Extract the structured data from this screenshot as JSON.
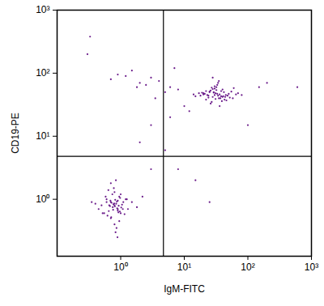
{
  "chart_data": {
    "type": "scatter",
    "x_label": "IgM-FITC",
    "y_label": "CD19-PE",
    "log": true,
    "color": "#6a1b8a",
    "marker": "dot",
    "xlim": [
      0.1,
      1000
    ],
    "ylim": [
      0.125,
      1000
    ],
    "xticks": [
      {
        "value": 1,
        "label": "10⁰"
      },
      {
        "value": 10,
        "label": "10¹"
      },
      {
        "value": 100,
        "label": "10²"
      },
      {
        "value": 1000,
        "label": "10³"
      }
    ],
    "yticks": [
      {
        "value": 1,
        "label": "10⁰"
      },
      {
        "value": 10,
        "label": "10¹"
      },
      {
        "value": 100,
        "label": "10²"
      },
      {
        "value": 1000,
        "label": "10³"
      }
    ],
    "gate_x": 4.7,
    "gate_y": 4.8,
    "x": [
      0.8,
      0.7,
      0.9,
      1.0,
      0.6,
      0.75,
      0.85,
      1.1,
      0.65,
      0.95,
      0.5,
      1.3,
      0.8,
      0.7,
      0.9,
      1.2,
      0.55,
      0.8,
      1.0,
      0.72,
      0.88,
      0.62,
      1.05,
      0.78,
      0.68,
      0.92,
      1.5,
      0.45,
      0.83,
      0.98,
      0.58,
      0.76,
      1.15,
      0.87,
      0.7,
      0.95,
      0.4,
      1.8,
      0.82,
      0.66,
      0.9,
      0.74,
      1.02,
      0.6,
      0.86,
      0.79,
      1.25,
      0.52,
      0.93,
      0.71,
      0.84,
      0.69,
      1.08,
      0.77,
      0.35,
      2.2,
      0.89,
      0.64,
      0.97,
      0.81,
      30,
      25,
      35,
      40,
      20,
      28,
      32,
      45,
      22,
      38,
      50,
      18,
      27,
      33,
      42,
      24,
      36,
      60,
      15,
      29,
      31,
      26,
      48,
      34,
      21,
      39,
      55,
      23,
      30,
      44,
      17,
      37,
      28,
      65,
      26,
      32,
      41,
      19,
      35,
      52,
      29,
      24,
      46,
      33,
      27,
      80,
      22,
      36,
      31,
      40,
      14,
      58,
      28,
      34,
      25,
      43,
      30,
      38,
      20,
      70,
      0.33,
      0.7,
      1.2,
      2,
      3,
      1.5,
      4,
      6,
      8,
      2.5,
      0.9,
      5,
      3.5,
      7,
      1.8,
      10,
      12,
      6,
      3,
      150,
      200,
      100,
      8,
      15,
      3,
      5,
      2,
      0.3,
      600,
      25
    ],
    "y": [
      0.8,
      0.9,
      0.7,
      0.6,
      1.0,
      0.75,
      0.85,
      0.9,
      0.65,
      1.1,
      0.8,
      0.7,
      1.3,
      0.5,
      0.95,
      1.0,
      0.6,
      0.4,
      1.2,
      0.88,
      0.72,
      0.55,
      0.82,
      1.5,
      0.78,
      0.62,
      0.9,
      0.7,
      0.3,
      1.05,
      1.1,
      0.68,
      0.58,
      0.92,
      1.8,
      0.45,
      0.85,
      0.75,
      0.98,
      0.8,
      0.66,
      1.2,
      0.74,
      0.9,
      0.35,
      0.86,
      1.0,
      0.6,
      0.79,
      0.52,
      2.0,
      0.95,
      0.7,
      0.83,
      0.9,
      1.1,
      0.25,
      1.4,
      0.64,
      0.77,
      45,
      50,
      40,
      55,
      48,
      42,
      60,
      45,
      38,
      52,
      47,
      44,
      35,
      65,
      50,
      41,
      46,
      58,
      43,
      49,
      39,
      53,
      44,
      70,
      47,
      36,
      51,
      45,
      62,
      42,
      48,
      40,
      56,
      46,
      33,
      54,
      43,
      49,
      75,
      41,
      50,
      44,
      37,
      47,
      59,
      45,
      52,
      30,
      48,
      42,
      46,
      40,
      85,
      44,
      51,
      38,
      57,
      43,
      46,
      48,
      380,
      80,
      90,
      70,
      85,
      110,
      75,
      60,
      55,
      65,
      95,
      50,
      40,
      120,
      60,
      30,
      25,
      20,
      15,
      60,
      70,
      15,
      3,
      2,
      3,
      6,
      8,
      200,
      60,
      0.9
    ]
  }
}
